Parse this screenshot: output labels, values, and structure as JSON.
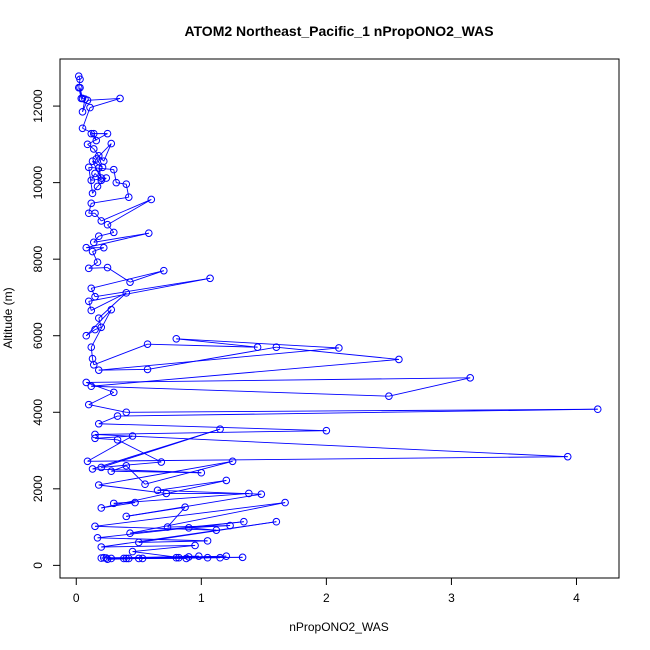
{
  "chart_data": {
    "type": "line",
    "title": "ATOM2 Northeast_Pacific_1 nPropONO2_WAS",
    "xlabel": "nPropONO2_WAS",
    "ylabel": "Altitude (m)",
    "xlim": [
      -0.13,
      4.34
    ],
    "ylim": [
      -330,
      13230
    ],
    "x_ticks": [
      0,
      1,
      2,
      3,
      4
    ],
    "y_ticks": [
      0,
      2000,
      4000,
      6000,
      8000,
      10000,
      12000
    ],
    "grid": false,
    "marker": "open-circle",
    "colors": {
      "series": "#0000ff"
    },
    "series": [
      {
        "name": "",
        "x": [
          0.02,
          0.03,
          0.02,
          0.04,
          0.03,
          0.05,
          0.07,
          0.05,
          0.09,
          0.35,
          0.11,
          0.05,
          0.14,
          0.16,
          0.12,
          0.25,
          0.09,
          0.14,
          0.18,
          0.22,
          0.28,
          0.16,
          0.21,
          0.13,
          0.2,
          0.18,
          0.2,
          0.15,
          0.12,
          0.24,
          0.17,
          0.13,
          0.1,
          0.3,
          0.32,
          0.4,
          0.42,
          0.12,
          0.1,
          0.15,
          0.2,
          0.6,
          0.25,
          0.3,
          0.18,
          0.14,
          0.58,
          0.08,
          0.22,
          0.13,
          0.17,
          0.1,
          0.25,
          0.43,
          0.7,
          0.12,
          0.15,
          1.07,
          0.1,
          0.12,
          0.4,
          0.18,
          0.2,
          0.15,
          0.08,
          0.28,
          0.12,
          0.13,
          0.14,
          0.57,
          1.45,
          0.8,
          2.1,
          0.18,
          0.57,
          1.6,
          2.58,
          0.12,
          2.5,
          3.15,
          0.08,
          0.3,
          0.1,
          0.4,
          4.17,
          0.33,
          0.18,
          2.0,
          0.15,
          3.93,
          0.09,
          0.45,
          0.15,
          0.33,
          0.68,
          0.2,
          1.15,
          0.13,
          1.0,
          0.28,
          0.4,
          0.55,
          1.25,
          0.18,
          0.72,
          1.38,
          0.3,
          0.47,
          0.2,
          1.2,
          0.65,
          1.48,
          0.4,
          0.87,
          0.73,
          1.23,
          0.9,
          1.12,
          0.15,
          1.67,
          0.43,
          1.34,
          0.17,
          1.05,
          0.5,
          1.6,
          0.2,
          0.95,
          0.45,
          0.88,
          0.4,
          0.8,
          0.25,
          0.42,
          0.22,
          1.15,
          0.53,
          0.82,
          0.38,
          0.98,
          0.24,
          1.33,
          0.2,
          1.05,
          0.5,
          1.2,
          0.28,
          0.9
        ],
        "y": [
          12780,
          12700,
          12480,
          12200,
          12480,
          12200,
          12180,
          11850,
          12150,
          12200,
          11960,
          11420,
          11280,
          11100,
          11280,
          11280,
          11000,
          10880,
          10700,
          10560,
          11020,
          10620,
          10400,
          10560,
          10120,
          10380,
          10060,
          10240,
          10060,
          10120,
          9900,
          9720,
          10400,
          10340,
          10000,
          9960,
          9620,
          9460,
          9200,
          9200,
          9000,
          9560,
          8900,
          8700,
          8600,
          8440,
          8680,
          8300,
          8300,
          8200,
          7920,
          7760,
          7780,
          7400,
          7700,
          7240,
          7020,
          7500,
          6900,
          6660,
          7120,
          6460,
          6220,
          6160,
          6000,
          6680,
          5700,
          5400,
          5240,
          5780,
          5700,
          5920,
          5680,
          5100,
          5120,
          5700,
          5380,
          4680,
          4420,
          4900,
          4780,
          4520,
          4200,
          4000,
          4080,
          3900,
          3700,
          3520,
          3420,
          2840,
          2720,
          3380,
          3320,
          3280,
          2700,
          2560,
          3560,
          2520,
          2420,
          2460,
          2600,
          2120,
          2720,
          2100,
          1880,
          1880,
          1620,
          1640,
          1500,
          2220,
          1960,
          1860,
          1280,
          1520,
          1000,
          1040,
          980,
          920,
          1020,
          1640,
          840,
          1140,
          720,
          640,
          600,
          1140,
          480,
          520,
          360,
          180,
          180,
          200,
          160,
          180,
          200,
          200,
          180,
          200,
          180,
          240,
          190,
          210,
          190,
          200,
          180,
          240,
          180,
          220
        ]
      }
    ]
  }
}
